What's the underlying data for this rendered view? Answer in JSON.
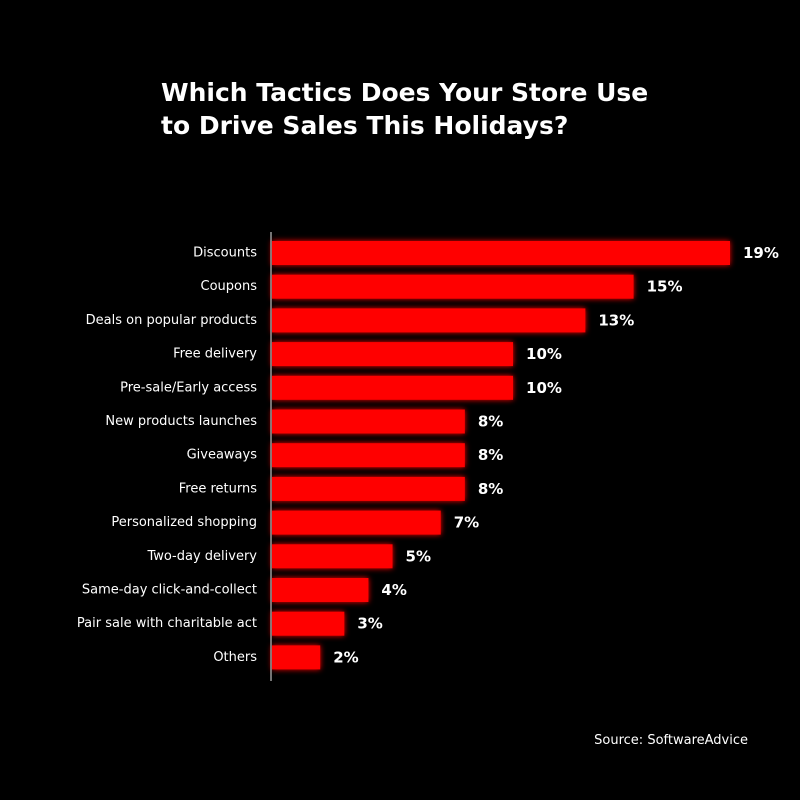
{
  "title_lines": [
    "Which Tactics Does Your Store Use",
    "to Drive Sales This Holidays?"
  ],
  "source": "Source: SoftwareAdvice",
  "colors": {
    "background": "#000000",
    "bar": "#ff0000",
    "text": "#ffffff",
    "axis": "#9a9a9a"
  },
  "chart_data": {
    "type": "bar",
    "orientation": "horizontal",
    "categories": [
      "Discounts",
      "Coupons",
      "Deals on popular products",
      "Free delivery",
      "Pre-sale/Early access",
      "New products launches",
      "Giveaways",
      "Free returns",
      "Personalized shopping",
      "Two-day delivery",
      "Same-day click-and-collect",
      "Pair sale with charitable act",
      "Others"
    ],
    "values": [
      19,
      15,
      13,
      10,
      10,
      8,
      8,
      8,
      7,
      5,
      4,
      3,
      2
    ],
    "value_labels": [
      "19%",
      "15%",
      "13%",
      "10%",
      "10%",
      "8%",
      "8%",
      "8%",
      "7%",
      "5%",
      "4%",
      "3%",
      "2%"
    ],
    "title": "Which Tactics Does Your Store Use to Drive Sales This Holidays?",
    "xlabel": "",
    "ylabel": "",
    "xlim": [
      0,
      19
    ],
    "grid": false,
    "legend": "none"
  }
}
